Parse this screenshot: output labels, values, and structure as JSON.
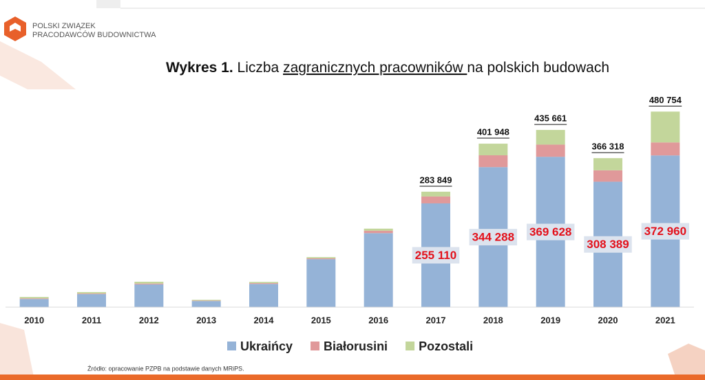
{
  "header": {
    "logo_line1": "POLSKI ZWIĄZEK",
    "logo_line2": "PRACODAWCÓW BUDOWNICTWA"
  },
  "chart_data": {
    "type": "stacked_bar",
    "title_parts": [
      "Wykres 1.",
      "Liczba ",
      "zagranicznych pracowników ",
      "na polskich budowach"
    ],
    "categories": [
      "2010",
      "2011",
      "2012",
      "2013",
      "2014",
      "2015",
      "2016",
      "2017",
      "2018",
      "2019",
      "2020",
      "2021"
    ],
    "series": [
      {
        "name": "Ukraińcy",
        "color": "#95b3d7",
        "values": [
          20000,
          32000,
          56000,
          15000,
          57000,
          118000,
          182000,
          255110,
          344288,
          369628,
          308389,
          372960
        ],
        "value_labels": [
          null,
          null,
          null,
          null,
          null,
          null,
          null,
          "255 110",
          "344 288",
          "369 628",
          "308 389",
          "372 960"
        ]
      },
      {
        "name": "Białorusini",
        "color": "#e0999a",
        "values": [
          1500,
          1500,
          2000,
          1000,
          2000,
          2000,
          6000,
          17000,
          29000,
          30000,
          28000,
          32000
        ]
      },
      {
        "name": "Pozostali",
        "color": "#c3d69b",
        "values": [
          3500,
          3500,
          4500,
          2000,
          3000,
          3000,
          5000,
          11739,
          28660,
          36033,
          29929,
          75794
        ]
      }
    ],
    "totals": [
      null,
      null,
      null,
      null,
      null,
      null,
      null,
      283849,
      401948,
      435661,
      366318,
      480754
    ],
    "total_labels": [
      null,
      null,
      null,
      null,
      null,
      null,
      null,
      "283 849",
      "401 948",
      "435 661",
      "366 318",
      "480 754"
    ],
    "ylim": [
      0,
      500000
    ],
    "source": "Źródło: opracowanie PZPB na podstawie danych MRiPS."
  }
}
